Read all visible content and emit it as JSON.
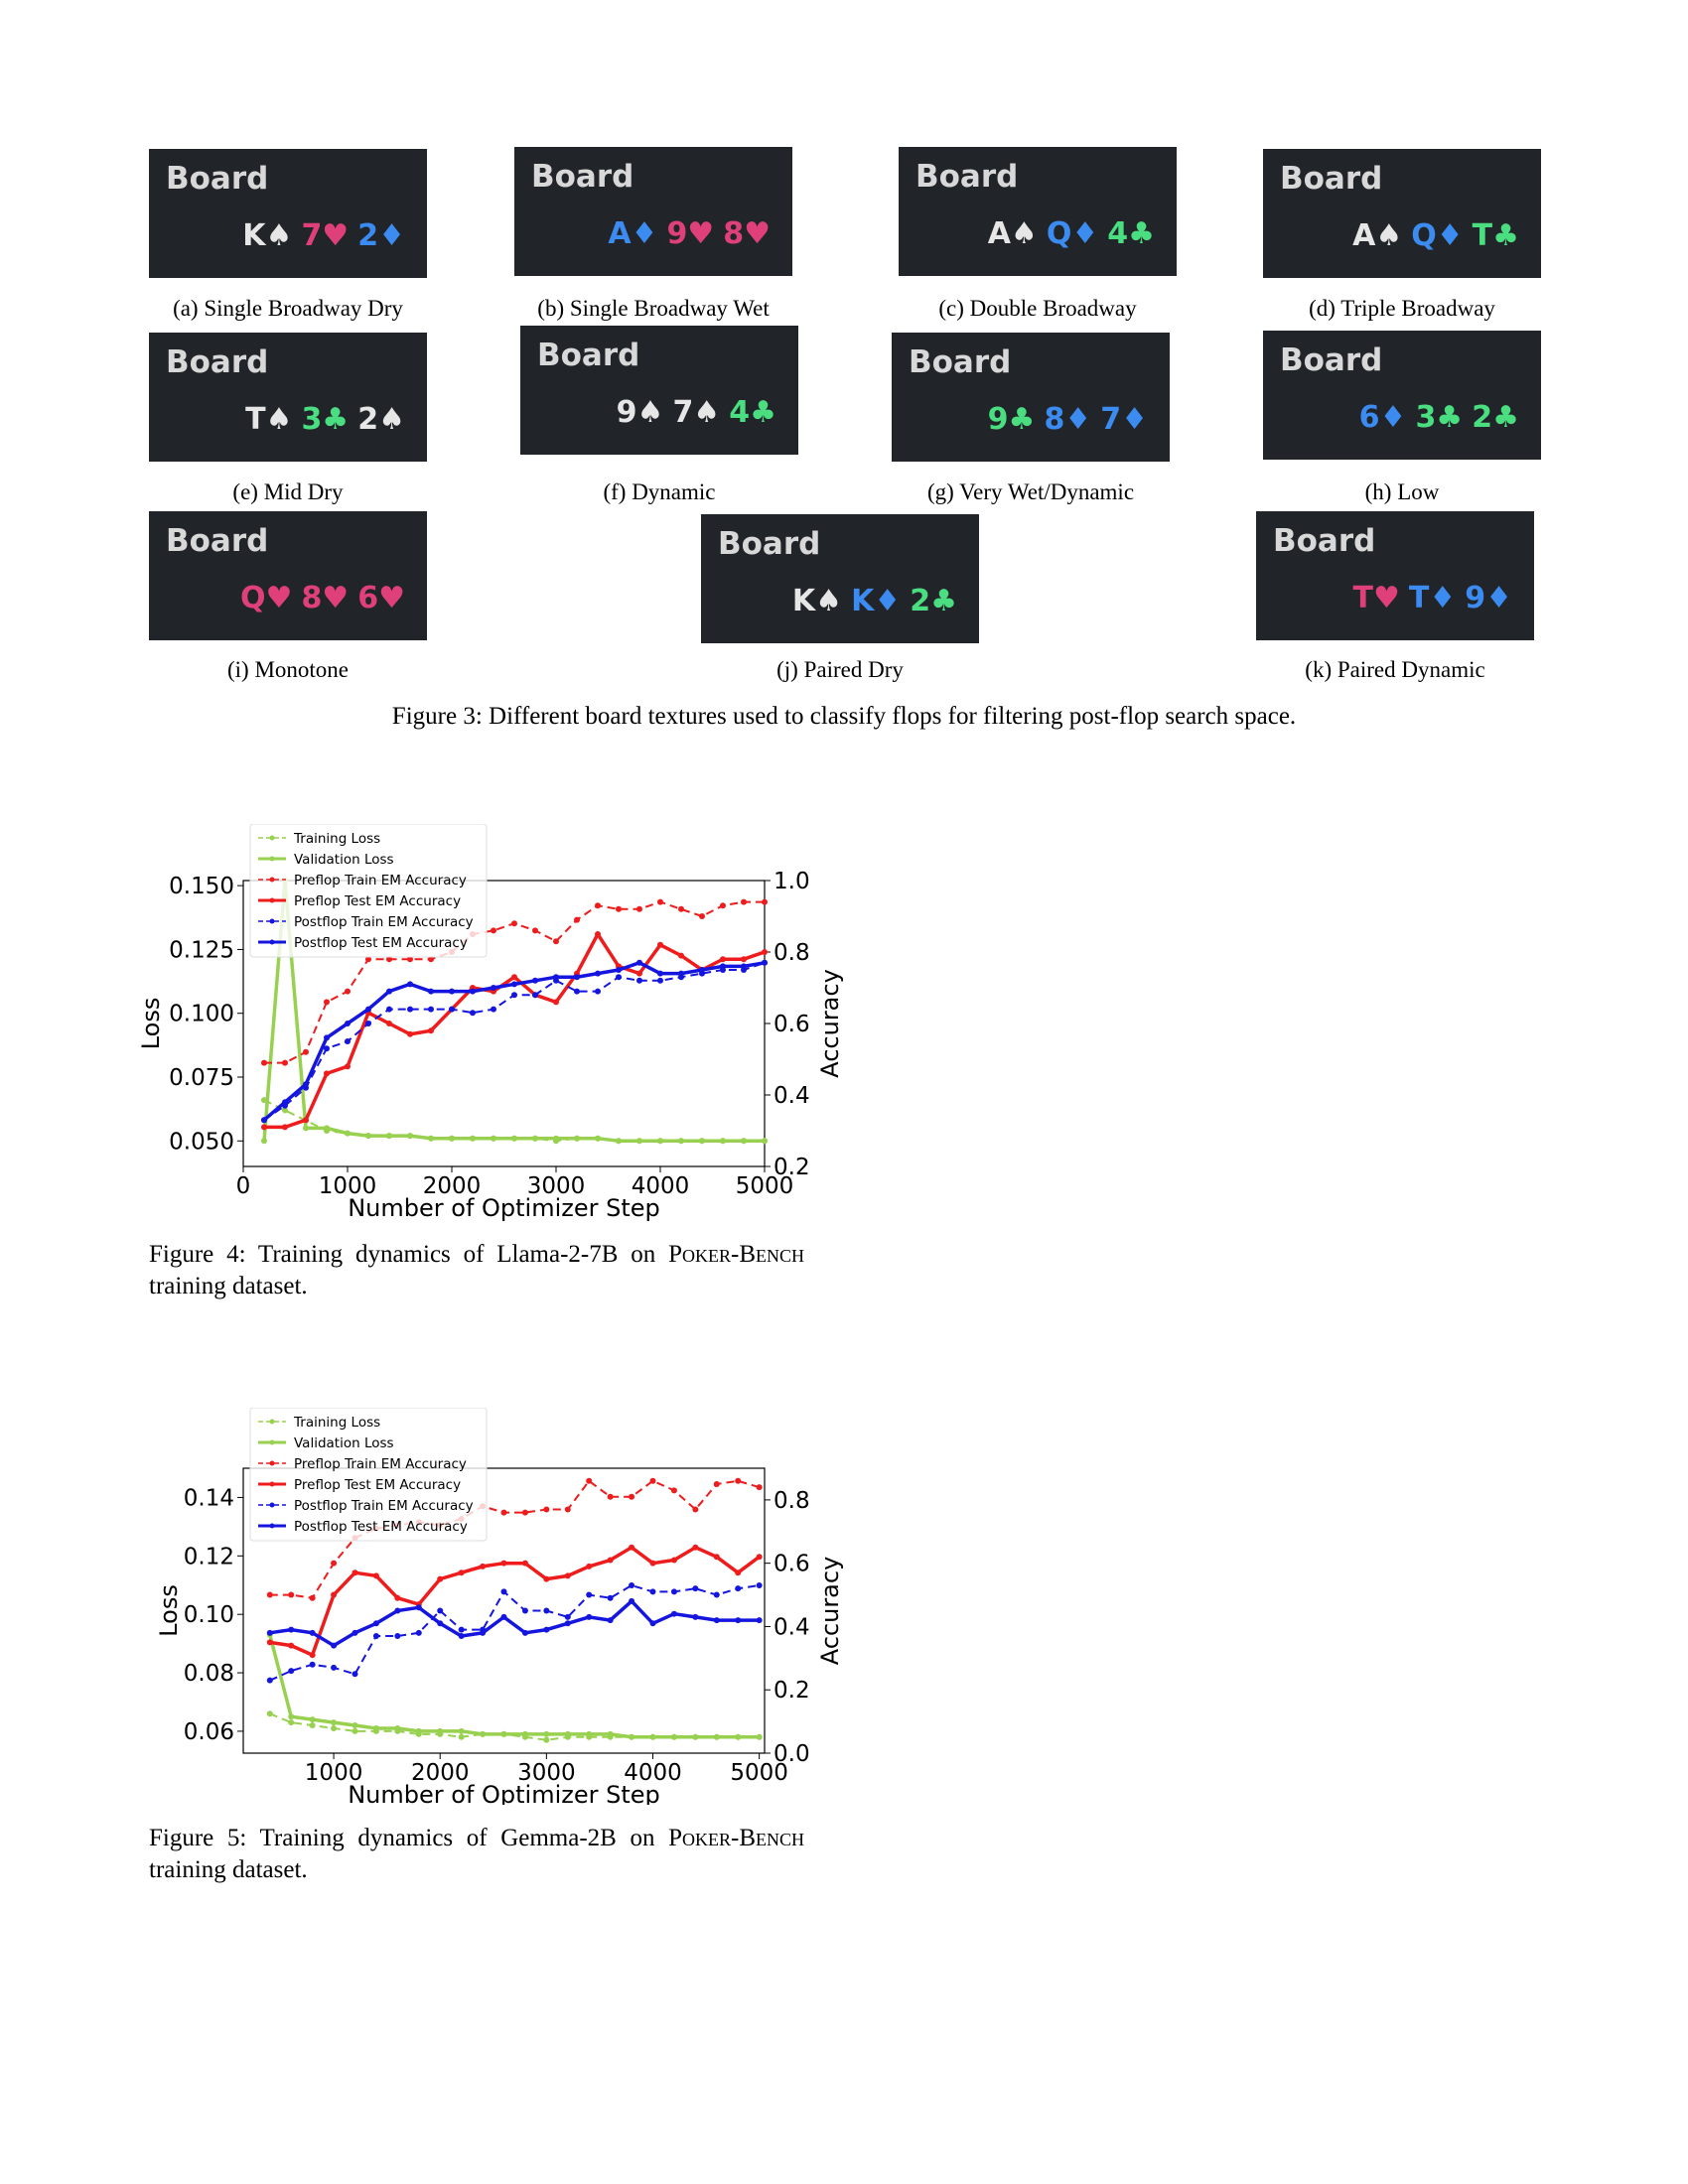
{
  "colors": {
    "red": "#e0407a",
    "blue": "#3b8bf0",
    "green": "#4ade80",
    "white": "#e6e6e6"
  },
  "boards": [
    {
      "title": "Board",
      "cards": [
        {
          "t": "K♠",
          "c": "white"
        },
        {
          "t": "7♥",
          "c": "red"
        },
        {
          "t": "2♦",
          "c": "blue"
        }
      ],
      "caption": "(a) Single Broadway Dry"
    },
    {
      "title": "Board",
      "cards": [
        {
          "t": "A♦",
          "c": "blue"
        },
        {
          "t": "9♥",
          "c": "red"
        },
        {
          "t": "8♥",
          "c": "red"
        }
      ],
      "caption": "(b) Single Broadway Wet"
    },
    {
      "title": "Board",
      "cards": [
        {
          "t": "A♠",
          "c": "white"
        },
        {
          "t": "Q♦",
          "c": "blue"
        },
        {
          "t": "4♣",
          "c": "green"
        }
      ],
      "caption": "(c) Double Broadway"
    },
    {
      "title": "Board",
      "cards": [
        {
          "t": "A♠",
          "c": "white"
        },
        {
          "t": "Q♦",
          "c": "blue"
        },
        {
          "t": "T♣",
          "c": "green"
        }
      ],
      "caption": "(d) Triple Broadway"
    },
    {
      "title": "Board",
      "cards": [
        {
          "t": "T♠",
          "c": "white"
        },
        {
          "t": "3♣",
          "c": "green"
        },
        {
          "t": "2♠",
          "c": "white"
        }
      ],
      "caption": "(e) Mid Dry"
    },
    {
      "title": "Board",
      "cards": [
        {
          "t": "9♠",
          "c": "white"
        },
        {
          "t": "7♠",
          "c": "white"
        },
        {
          "t": "4♣",
          "c": "green"
        }
      ],
      "caption": "(f) Dynamic"
    },
    {
      "title": "Board",
      "cards": [
        {
          "t": "9♣",
          "c": "green"
        },
        {
          "t": "8♦",
          "c": "blue"
        },
        {
          "t": "7♦",
          "c": "blue"
        }
      ],
      "caption": "(g) Very Wet/Dynamic"
    },
    {
      "title": "Board",
      "cards": [
        {
          "t": "6♦",
          "c": "blue"
        },
        {
          "t": "3♣",
          "c": "green"
        },
        {
          "t": "2♣",
          "c": "green"
        }
      ],
      "caption": "(h) Low"
    },
    {
      "title": "Board",
      "cards": [
        {
          "t": "Q♥",
          "c": "red"
        },
        {
          "t": "8♥",
          "c": "red"
        },
        {
          "t": "6♥",
          "c": "red"
        }
      ],
      "caption": "(i) Monotone"
    },
    {
      "title": "Board",
      "cards": [
        {
          "t": "K♠",
          "c": "white"
        },
        {
          "t": "K♦",
          "c": "blue"
        },
        {
          "t": "2♣",
          "c": "green"
        }
      ],
      "caption": "(j) Paired Dry"
    },
    {
      "title": "Board",
      "cards": [
        {
          "t": "T♥",
          "c": "red"
        },
        {
          "t": "T♦",
          "c": "blue"
        },
        {
          "t": "9♦",
          "c": "blue"
        }
      ],
      "caption": "(k) Paired Dynamic"
    }
  ],
  "figure3_caption": "Figure 3: Different board textures used to classify flops for filtering post-flop search space.",
  "figure4_caption": {
    "pre": "Figure 4: Training dynamics of Llama-2-7B on ",
    "sc": "Poker-Bench",
    "post": " training dataset."
  },
  "figure5_caption": {
    "pre": "Figure 5: Training dynamics of Gemma-2B on ",
    "sc": "Poker-Bench",
    "post": " training dataset."
  },
  "chart_data": [
    {
      "type": "line",
      "xlabel": "Number of Optimizer Step",
      "ylabel": "Loss",
      "ylabel_right": "Accuracy",
      "xlim": [
        0,
        5000
      ],
      "ylim": [
        0.04,
        0.152
      ],
      "ylim_right": [
        0.2,
        1.0
      ],
      "xticks": [
        0,
        1000,
        2000,
        3000,
        4000,
        5000
      ],
      "yticks": [
        0.05,
        0.075,
        0.1,
        0.125,
        0.15
      ],
      "yticks_right": [
        0.2,
        0.4,
        0.6,
        0.8,
        1.0
      ],
      "grid": false,
      "legend": "top-left",
      "series": [
        {
          "name": "Training Loss",
          "axis": "left",
          "color": "#98d04f",
          "dash": true,
          "x": [
            200,
            400,
            600,
            800,
            1000,
            1200,
            1400,
            1600,
            1800,
            2000,
            2200,
            2400,
            2600,
            2800,
            3000,
            3200,
            3400,
            3600,
            3800,
            4000,
            4200,
            4400,
            4600,
            4800,
            5000
          ],
          "values": [
            0.066,
            0.062,
            0.058,
            0.054,
            0.053,
            0.052,
            0.052,
            0.052,
            0.051,
            0.051,
            0.051,
            0.051,
            0.051,
            0.051,
            0.05,
            0.051,
            0.051,
            0.05,
            0.05,
            0.05,
            0.05,
            0.05,
            0.05,
            0.05,
            0.05
          ]
        },
        {
          "name": "Validation Loss",
          "axis": "left",
          "color": "#98d04f",
          "dash": false,
          "x": [
            200,
            400,
            600,
            800,
            1000,
            1200,
            1400,
            1600,
            1800,
            2000,
            2200,
            2400,
            2600,
            2800,
            3000,
            3200,
            3400,
            3600,
            3800,
            4000,
            4200,
            4400,
            4600,
            4800,
            5000
          ],
          "values": [
            0.05,
            0.152,
            0.055,
            0.055,
            0.053,
            0.052,
            0.052,
            0.052,
            0.051,
            0.051,
            0.051,
            0.051,
            0.051,
            0.051,
            0.051,
            0.051,
            0.051,
            0.05,
            0.05,
            0.05,
            0.05,
            0.05,
            0.05,
            0.05,
            0.05
          ]
        },
        {
          "name": "Preflop Train EM Accuracy",
          "axis": "right",
          "color": "#ee1c1c",
          "dash": true,
          "x": [
            200,
            400,
            600,
            800,
            1000,
            1200,
            1400,
            1600,
            1800,
            2000,
            2200,
            2400,
            2600,
            2800,
            3000,
            3200,
            3400,
            3600,
            3800,
            4000,
            4200,
            4400,
            4600,
            4800,
            5000
          ],
          "values": [
            0.49,
            0.49,
            0.52,
            0.66,
            0.69,
            0.78,
            0.78,
            0.78,
            0.78,
            0.8,
            0.85,
            0.86,
            0.88,
            0.86,
            0.83,
            0.89,
            0.93,
            0.92,
            0.92,
            0.94,
            0.92,
            0.9,
            0.93,
            0.94,
            0.94
          ]
        },
        {
          "name": "Preflop Test EM Accuracy",
          "axis": "right",
          "color": "#ee1c1c",
          "dash": false,
          "x": [
            200,
            400,
            600,
            800,
            1000,
            1200,
            1400,
            1600,
            1800,
            2000,
            2200,
            2400,
            2600,
            2800,
            3000,
            3200,
            3400,
            3600,
            3800,
            4000,
            4200,
            4400,
            4600,
            4800,
            5000
          ],
          "values": [
            0.31,
            0.31,
            0.33,
            0.46,
            0.48,
            0.63,
            0.6,
            0.57,
            0.58,
            0.64,
            0.7,
            0.69,
            0.73,
            0.68,
            0.66,
            0.74,
            0.85,
            0.76,
            0.74,
            0.82,
            0.79,
            0.75,
            0.78,
            0.78,
            0.8
          ]
        },
        {
          "name": "Postflop Train EM Accuracy",
          "axis": "right",
          "color": "#1515e0",
          "dash": true,
          "x": [
            200,
            400,
            600,
            800,
            1000,
            1200,
            1400,
            1600,
            1800,
            2000,
            2200,
            2400,
            2600,
            2800,
            3000,
            3200,
            3400,
            3600,
            3800,
            4000,
            4200,
            4400,
            4600,
            4800,
            5000
          ],
          "values": [
            0.33,
            0.37,
            0.42,
            0.53,
            0.55,
            0.6,
            0.64,
            0.64,
            0.64,
            0.64,
            0.63,
            0.64,
            0.68,
            0.68,
            0.72,
            0.69,
            0.69,
            0.73,
            0.72,
            0.72,
            0.73,
            0.74,
            0.75,
            0.75,
            0.77
          ]
        },
        {
          "name": "Postflop Test EM Accuracy",
          "axis": "right",
          "color": "#1515e0",
          "dash": false,
          "x": [
            200,
            400,
            600,
            800,
            1000,
            1200,
            1400,
            1600,
            1800,
            2000,
            2200,
            2400,
            2600,
            2800,
            3000,
            3200,
            3400,
            3600,
            3800,
            4000,
            4200,
            4400,
            4600,
            4800,
            5000
          ],
          "values": [
            0.33,
            0.38,
            0.43,
            0.56,
            0.6,
            0.64,
            0.69,
            0.71,
            0.69,
            0.69,
            0.69,
            0.7,
            0.71,
            0.72,
            0.73,
            0.73,
            0.74,
            0.75,
            0.77,
            0.74,
            0.74,
            0.75,
            0.76,
            0.76,
            0.77
          ]
        }
      ]
    },
    {
      "type": "line",
      "xlabel": "Number of Optimizer Step",
      "ylabel": "Loss",
      "ylabel_right": "Accuracy",
      "xlim": [
        150,
        5050
      ],
      "ylim": [
        0.0525,
        0.15
      ],
      "ylim_right": [
        0.0,
        0.9
      ],
      "xticks": [
        1000,
        2000,
        3000,
        4000,
        5000
      ],
      "yticks": [
        0.06,
        0.08,
        0.1,
        0.12,
        0.14
      ],
      "yticks_right": [
        0.0,
        0.2,
        0.4,
        0.6,
        0.8
      ],
      "grid": false,
      "legend": "top-left",
      "series": [
        {
          "name": "Training Loss",
          "axis": "left",
          "color": "#98d04f",
          "dash": true,
          "x": [
            400,
            600,
            800,
            1000,
            1200,
            1400,
            1600,
            1800,
            2000,
            2200,
            2400,
            2600,
            2800,
            3000,
            3200,
            3400,
            3600,
            3800,
            4000,
            4200,
            4400,
            4600,
            4800,
            5000
          ],
          "values": [
            0.066,
            0.063,
            0.062,
            0.061,
            0.06,
            0.06,
            0.06,
            0.059,
            0.059,
            0.058,
            0.059,
            0.059,
            0.058,
            0.057,
            0.058,
            0.058,
            0.058,
            0.058,
            0.058,
            0.058,
            0.058,
            0.058,
            0.058,
            0.058
          ]
        },
        {
          "name": "Validation Loss",
          "axis": "left",
          "color": "#98d04f",
          "dash": false,
          "x": [
            400,
            600,
            800,
            1000,
            1200,
            1400,
            1600,
            1800,
            2000,
            2200,
            2400,
            2600,
            2800,
            3000,
            3200,
            3400,
            3600,
            3800,
            4000,
            4200,
            4400,
            4600,
            4800,
            5000
          ],
          "values": [
            0.093,
            0.065,
            0.064,
            0.063,
            0.062,
            0.061,
            0.061,
            0.06,
            0.06,
            0.06,
            0.059,
            0.059,
            0.059,
            0.059,
            0.059,
            0.059,
            0.059,
            0.058,
            0.058,
            0.058,
            0.058,
            0.058,
            0.058,
            0.058
          ]
        },
        {
          "name": "Preflop Train EM Accuracy",
          "axis": "right",
          "color": "#ee1c1c",
          "dash": true,
          "x": [
            400,
            600,
            800,
            1000,
            1200,
            1400,
            1600,
            1800,
            2000,
            2200,
            2400,
            2600,
            2800,
            3000,
            3200,
            3400,
            3600,
            3800,
            4000,
            4200,
            4400,
            4600,
            4800,
            5000
          ],
          "values": [
            0.5,
            0.5,
            0.49,
            0.6,
            0.68,
            0.71,
            0.72,
            0.73,
            0.72,
            0.74,
            0.78,
            0.76,
            0.76,
            0.77,
            0.77,
            0.86,
            0.81,
            0.81,
            0.86,
            0.83,
            0.77,
            0.85,
            0.86,
            0.84
          ]
        },
        {
          "name": "Preflop Test EM Accuracy",
          "axis": "right",
          "color": "#ee1c1c",
          "dash": false,
          "x": [
            400,
            600,
            800,
            1000,
            1200,
            1400,
            1600,
            1800,
            2000,
            2200,
            2400,
            2600,
            2800,
            3000,
            3200,
            3400,
            3600,
            3800,
            4000,
            4200,
            4400,
            4600,
            4800,
            5000
          ],
          "values": [
            0.35,
            0.34,
            0.31,
            0.5,
            0.57,
            0.56,
            0.49,
            0.47,
            0.55,
            0.57,
            0.59,
            0.6,
            0.6,
            0.55,
            0.56,
            0.59,
            0.61,
            0.65,
            0.6,
            0.61,
            0.65,
            0.62,
            0.57,
            0.62
          ]
        },
        {
          "name": "Postflop Train EM Accuracy",
          "axis": "right",
          "color": "#1515e0",
          "dash": true,
          "x": [
            400,
            600,
            800,
            1000,
            1200,
            1400,
            1600,
            1800,
            2000,
            2200,
            2400,
            2600,
            2800,
            3000,
            3200,
            3400,
            3600,
            3800,
            4000,
            4200,
            4400,
            4600,
            4800,
            5000
          ],
          "values": [
            0.23,
            0.26,
            0.28,
            0.27,
            0.25,
            0.37,
            0.37,
            0.38,
            0.45,
            0.39,
            0.39,
            0.51,
            0.45,
            0.45,
            0.43,
            0.5,
            0.49,
            0.53,
            0.51,
            0.51,
            0.52,
            0.5,
            0.52,
            0.53
          ]
        },
        {
          "name": "Postflop Test EM Accuracy",
          "axis": "right",
          "color": "#1515e0",
          "dash": false,
          "x": [
            400,
            600,
            800,
            1000,
            1200,
            1400,
            1600,
            1800,
            2000,
            2200,
            2400,
            2600,
            2800,
            3000,
            3200,
            3400,
            3600,
            3800,
            4000,
            4200,
            4400,
            4600,
            4800,
            5000
          ],
          "values": [
            0.38,
            0.39,
            0.38,
            0.34,
            0.38,
            0.41,
            0.45,
            0.46,
            0.41,
            0.37,
            0.38,
            0.43,
            0.38,
            0.39,
            0.41,
            0.43,
            0.42,
            0.48,
            0.41,
            0.44,
            0.43,
            0.42,
            0.42,
            0.42
          ]
        }
      ]
    }
  ]
}
